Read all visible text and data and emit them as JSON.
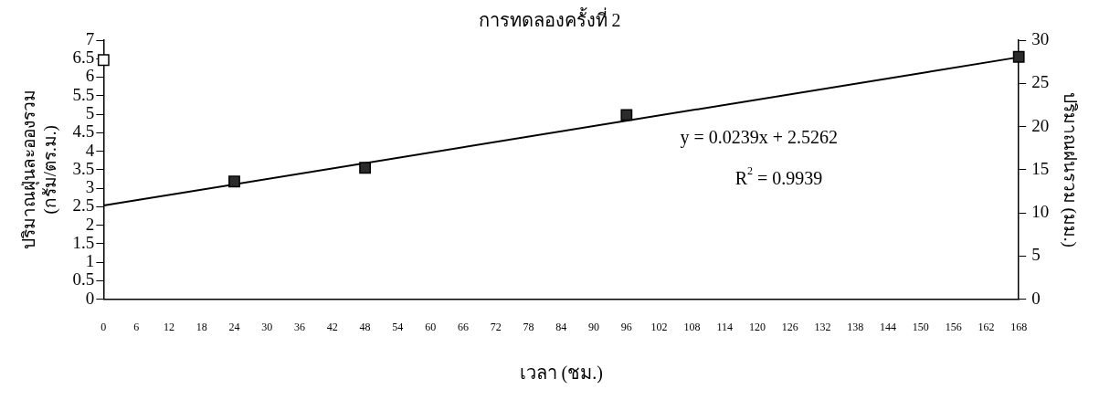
{
  "chart_data": {
    "type": "scatter",
    "title": "การทดลองครั้งที่ 2",
    "xlabel": "เวลา (ชม.)",
    "ylabel": "ปริมาณฝุ่นละอองรวม\n(กรัม/ตร.ม.)",
    "y2label": "ปริมาณฝนรวม (มม.)",
    "xlim": [
      0,
      168
    ],
    "xticks": [
      0,
      6,
      12,
      18,
      24,
      30,
      36,
      42,
      48,
      54,
      60,
      66,
      72,
      78,
      84,
      90,
      96,
      102,
      108,
      114,
      120,
      126,
      132,
      138,
      144,
      150,
      156,
      162,
      168
    ],
    "ylim": [
      0,
      7
    ],
    "yticks": [
      0,
      0.5,
      1,
      1.5,
      2,
      2.5,
      3,
      3.5,
      4,
      4.5,
      5,
      5.5,
      6,
      6.5,
      7
    ],
    "y2lim": [
      0,
      30
    ],
    "y2ticks": [
      0,
      5,
      10,
      15,
      20,
      25,
      30
    ],
    "series": [
      {
        "type": "scatter",
        "color": "#2b2b2b",
        "x": [
          24,
          48,
          96,
          168
        ],
        "values": [
          3.18,
          3.55,
          4.98,
          6.55
        ]
      },
      {
        "type": "scatter",
        "color": "#ffffff",
        "axis": "y2",
        "x": [
          0
        ],
        "values": [
          27.7
        ]
      },
      {
        "type": "line",
        "color": "#000000",
        "marker": "none",
        "x": [
          0,
          168
        ],
        "values": [
          2.53,
          6.54
        ]
      }
    ],
    "annotations": [
      "y = 0.0239x + 2.5262",
      "R$^{2}$ = 0.9939"
    ],
    "marker": "square",
    "grid": false,
    "legend": false
  }
}
